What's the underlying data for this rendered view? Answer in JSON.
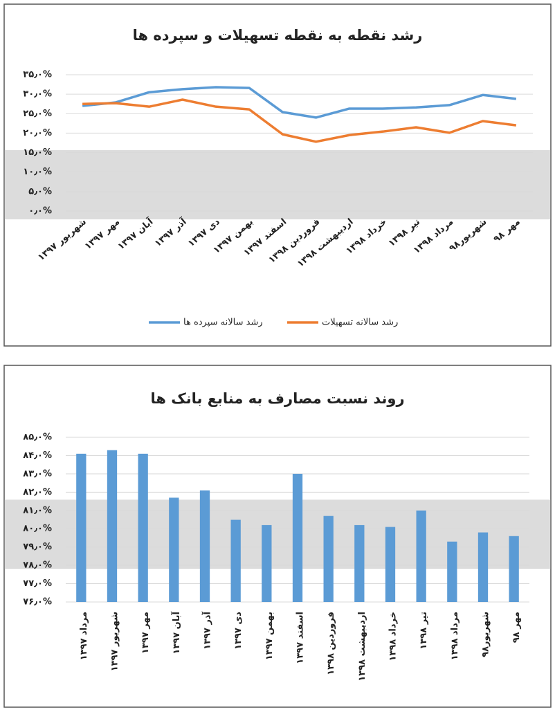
{
  "chart_data": [
    {
      "type": "line",
      "title": "رشد نقطه به نقطه تسهیلات و سپرده ها",
      "categories": [
        "شهریور ۱۳۹۷",
        "مهر ۱۳۹۷",
        "آبان ۱۳۹۷",
        "آذر ۱۳۹۷",
        "دی ۱۳۹۷",
        "بهمن ۱۳۹۷",
        "اسفند ۱۳۹۷",
        "فروردین ۱۳۹۸",
        "اردیبهشت ۱۳۹۸",
        "خرداد ۱۳۹۸",
        "تیر ۱۳۹۸",
        "مرداد ۱۳۹۸",
        "شهریور۹۸",
        "مهر ۹۸"
      ],
      "series": [
        {
          "name": "رشد سالانه سپرده ها",
          "color": "#5b9bd5",
          "values": [
            27.0,
            27.9,
            30.5,
            31.3,
            31.8,
            31.6,
            25.4,
            24.0,
            26.3,
            26.3,
            26.6,
            27.2,
            29.8,
            28.8
          ]
        },
        {
          "name": "رشد سالانه تسهیلات",
          "color": "#ed7d31",
          "values": [
            27.5,
            27.7,
            26.8,
            28.6,
            26.8,
            26.1,
            19.7,
            17.8,
            19.5,
            20.4,
            21.5,
            20.1,
            23.1,
            22.0
          ]
        }
      ],
      "ylim": [
        0,
        35
      ],
      "yticks": [
        {
          "value": 0,
          "label": "۰٫۰%"
        },
        {
          "value": 5,
          "label": "۵٫۰%"
        },
        {
          "value": 10,
          "label": "۱۰٫۰%"
        },
        {
          "value": 15,
          "label": "۱۵٫۰%"
        },
        {
          "value": 20,
          "label": "۲۰٫۰%"
        },
        {
          "value": 25,
          "label": "۲۵٫۰%"
        },
        {
          "value": 30,
          "label": "۳۰٫۰%"
        },
        {
          "value": 35,
          "label": "۳۵٫۰%"
        }
      ],
      "grid": true,
      "legend": "bottom"
    },
    {
      "type": "bar",
      "title": "روند نسبت مصارف به منابع بانک ها",
      "categories": [
        "مرداد ۱۳۹۷",
        "شهریور ۱۳۹۷",
        "مهر ۱۳۹۷",
        "آبان ۱۳۹۷",
        "آذر ۱۳۹۷",
        "دی ۱۳۹۷",
        "بهمن ۱۳۹۷",
        "اسفند ۱۳۹۷",
        "فروردین ۱۳۹۸",
        "اردیبهشت ۱۳۹۸",
        "خرداد ۱۳۹۸",
        "تیر ۱۳۹۸",
        "مرداد ۱۳۹۸",
        "شهریور۹۸",
        "مهر ۹۸"
      ],
      "values": [
        84.1,
        84.3,
        84.1,
        81.7,
        82.1,
        80.5,
        80.2,
        83.0,
        80.7,
        80.2,
        80.1,
        81.0,
        79.3,
        79.8,
        79.6
      ],
      "color": "#5b9bd5",
      "ylim": [
        76,
        85
      ],
      "yticks": [
        {
          "value": 76,
          "label": "۷۶٫۰%"
        },
        {
          "value": 77,
          "label": "۷۷٫۰%"
        },
        {
          "value": 78,
          "label": "۷۸٫۰%"
        },
        {
          "value": 79,
          "label": "۷۹٫۰%"
        },
        {
          "value": 80,
          "label": "۸۰٫۰%"
        },
        {
          "value": 81,
          "label": "۸۱٫۰%"
        },
        {
          "value": 82,
          "label": "۸۲٫۰%"
        },
        {
          "value": 83,
          "label": "۸۳٫۰%"
        },
        {
          "value": 84,
          "label": "۸۴٫۰%"
        },
        {
          "value": 85,
          "label": "۸۵٫۰%"
        }
      ],
      "grid": true
    }
  ]
}
